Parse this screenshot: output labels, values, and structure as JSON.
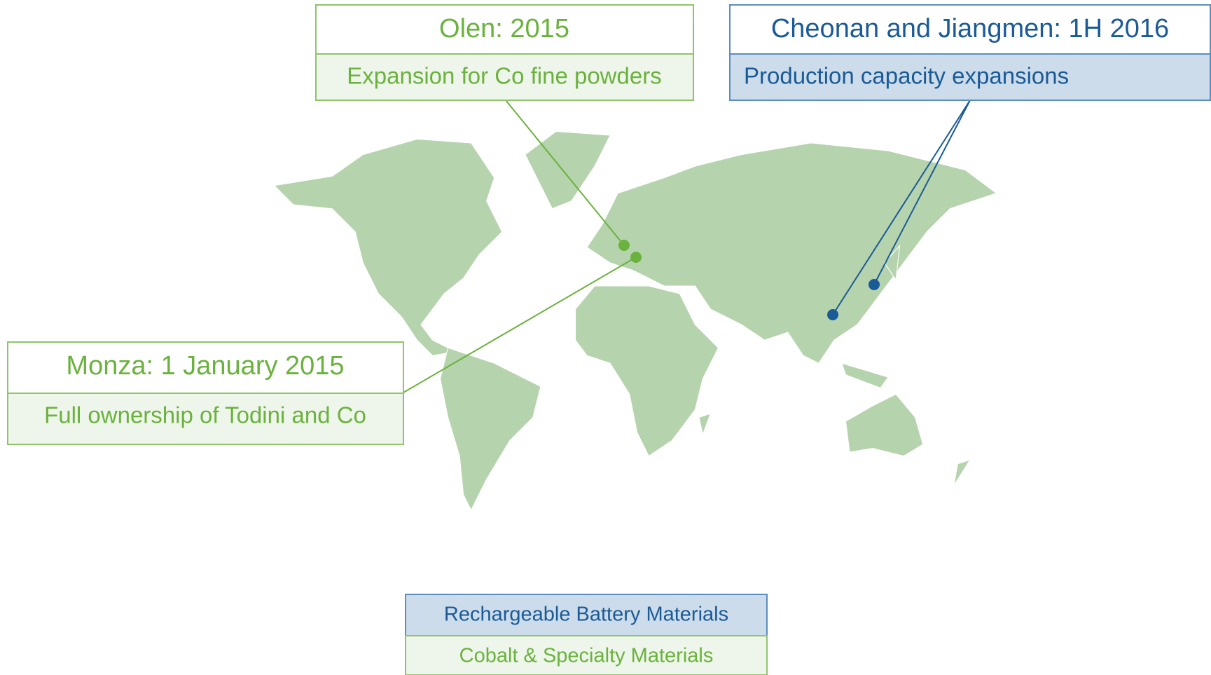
{
  "callouts": [
    {
      "title": "Olen: 2015",
      "subtitle": "Expansion for Co fine powders"
    },
    {
      "title": "Cheonan and Jiangmen: 1H 2016",
      "subtitle": "Production capacity expansions"
    },
    {
      "title": "Monza: 1 January 2015",
      "subtitle": "Full ownership of Todini and Co"
    }
  ],
  "legend": [
    "Rechargeable Battery Materials",
    "Cobalt & Specialty Materials"
  ]
}
